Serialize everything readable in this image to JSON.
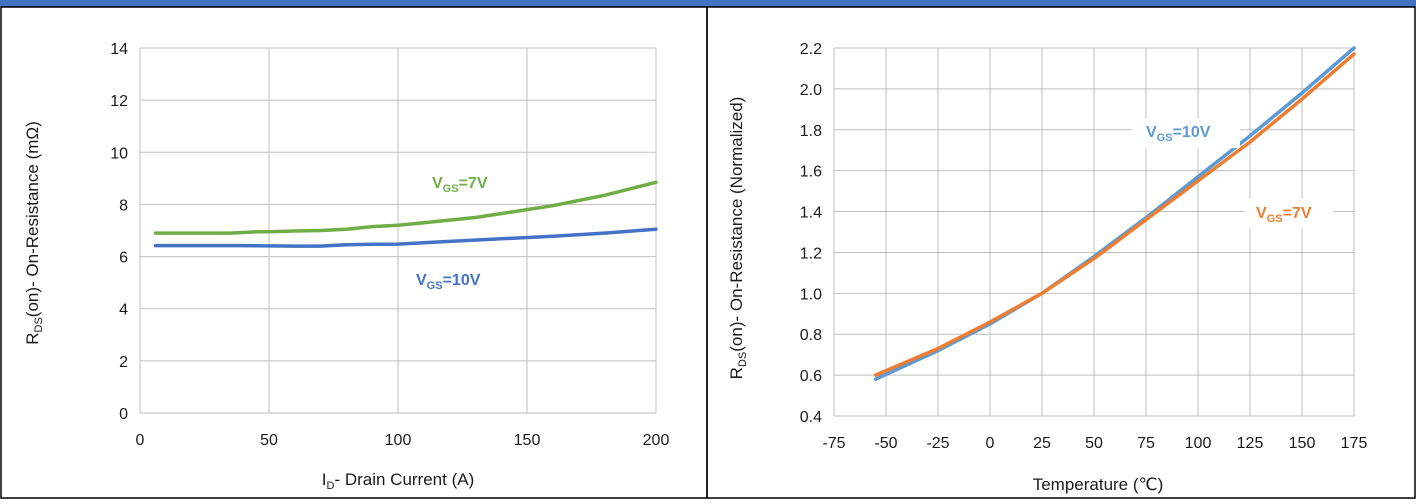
{
  "chart_data": [
    {
      "type": "line",
      "title": "",
      "xlabel": "I",
      "xlabel_sub": "D",
      "xlabel_rest": "- Drain Current (A)",
      "ylabel": "R",
      "ylabel_sub": "DS",
      "ylabel_rest": "(on)- On-Resistance (mΩ)",
      "xlim": [
        0,
        200
      ],
      "ylim": [
        0,
        14
      ],
      "xticks": [
        0,
        50,
        100,
        150,
        200
      ],
      "yticks": [
        0,
        2,
        4,
        6,
        8,
        10,
        12,
        14
      ],
      "grid": true,
      "series": [
        {
          "label_main": "V",
          "label_sub": "GS",
          "label_rest": "=7V",
          "color": "#70ad47",
          "x": [
            6,
            20,
            35,
            45,
            50,
            60,
            70,
            80,
            90,
            100,
            110,
            120,
            130,
            140,
            150,
            160,
            170,
            180,
            190,
            200
          ],
          "y": [
            6.9,
            6.9,
            6.9,
            6.95,
            6.95,
            6.98,
            7.0,
            7.05,
            7.15,
            7.2,
            7.3,
            7.4,
            7.5,
            7.65,
            7.8,
            7.95,
            8.15,
            8.35,
            8.6,
            8.85
          ]
        },
        {
          "label_main": "V",
          "label_sub": "GS",
          "label_rest": "=10V",
          "color": "#4472c4",
          "x": [
            6,
            20,
            40,
            60,
            70,
            80,
            90,
            100,
            120,
            140,
            160,
            180,
            200
          ],
          "y": [
            6.42,
            6.42,
            6.42,
            6.4,
            6.4,
            6.45,
            6.47,
            6.48,
            6.58,
            6.68,
            6.78,
            6.9,
            7.05
          ]
        }
      ]
    },
    {
      "type": "line",
      "title": "",
      "xlabel": "Temperature (℃)",
      "ylabel": "R",
      "ylabel_sub": "DS",
      "ylabel_rest": "(on)- On-Resistance (Normalized)",
      "xlim": [
        -75,
        175
      ],
      "ylim": [
        0.4,
        2.2
      ],
      "xticks": [
        -75,
        -50,
        -25,
        0,
        25,
        50,
        75,
        100,
        125,
        150,
        175
      ],
      "yticks": [
        0.4,
        0.6,
        0.8,
        1.0,
        1.2,
        1.4,
        1.6,
        1.8,
        2.0,
        2.2
      ],
      "grid": true,
      "series": [
        {
          "label_main": "V",
          "label_sub": "GS",
          "label_rest": "=10V",
          "color": "#5b9bd5",
          "x": [
            -55,
            -25,
            0,
            25,
            50,
            75,
            100,
            125,
            150,
            175
          ],
          "y": [
            0.58,
            0.72,
            0.85,
            1.0,
            1.18,
            1.37,
            1.57,
            1.77,
            1.98,
            2.2
          ]
        },
        {
          "label_main": "V",
          "label_sub": "GS",
          "label_rest": "=7V",
          "color": "#ed7d31",
          "x": [
            -55,
            -25,
            0,
            25,
            50,
            75,
            100,
            125,
            150,
            175
          ],
          "y": [
            0.6,
            0.73,
            0.86,
            1.0,
            1.17,
            1.36,
            1.55,
            1.74,
            1.95,
            2.17
          ]
        }
      ]
    }
  ]
}
